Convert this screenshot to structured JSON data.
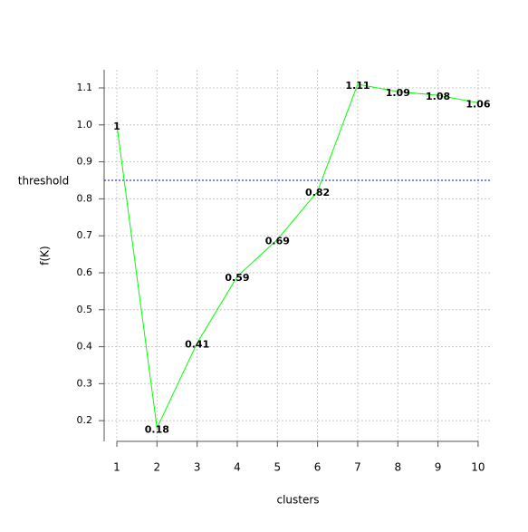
{
  "chart_data": {
    "type": "line",
    "x_label": "clusters",
    "y_label": "f(K)",
    "x": [
      1,
      2,
      3,
      4,
      5,
      6,
      7,
      8,
      9,
      10
    ],
    "series": [
      {
        "color": "#00ff00",
        "values": [
          1,
          0.18,
          0.41,
          0.59,
          0.69,
          0.82,
          1.11,
          1.09,
          1.08,
          1.06
        ]
      }
    ],
    "threshold": 0.85,
    "threshold_label": "threshold",
    "threshold_color": "#0000ff",
    "xlim": [
      0.684,
      10.34
    ],
    "ylim": [
      0.144,
      1.149
    ],
    "xticks": [
      1,
      2,
      3,
      4,
      5,
      6,
      7,
      8,
      9,
      10
    ],
    "yticks": [
      0.2,
      0.3,
      0.4,
      0.5,
      0.6,
      0.7,
      0.8,
      0.9,
      {
        "value": 1,
        "label": "1.0"
      },
      1.1
    ],
    "grid": true
  }
}
